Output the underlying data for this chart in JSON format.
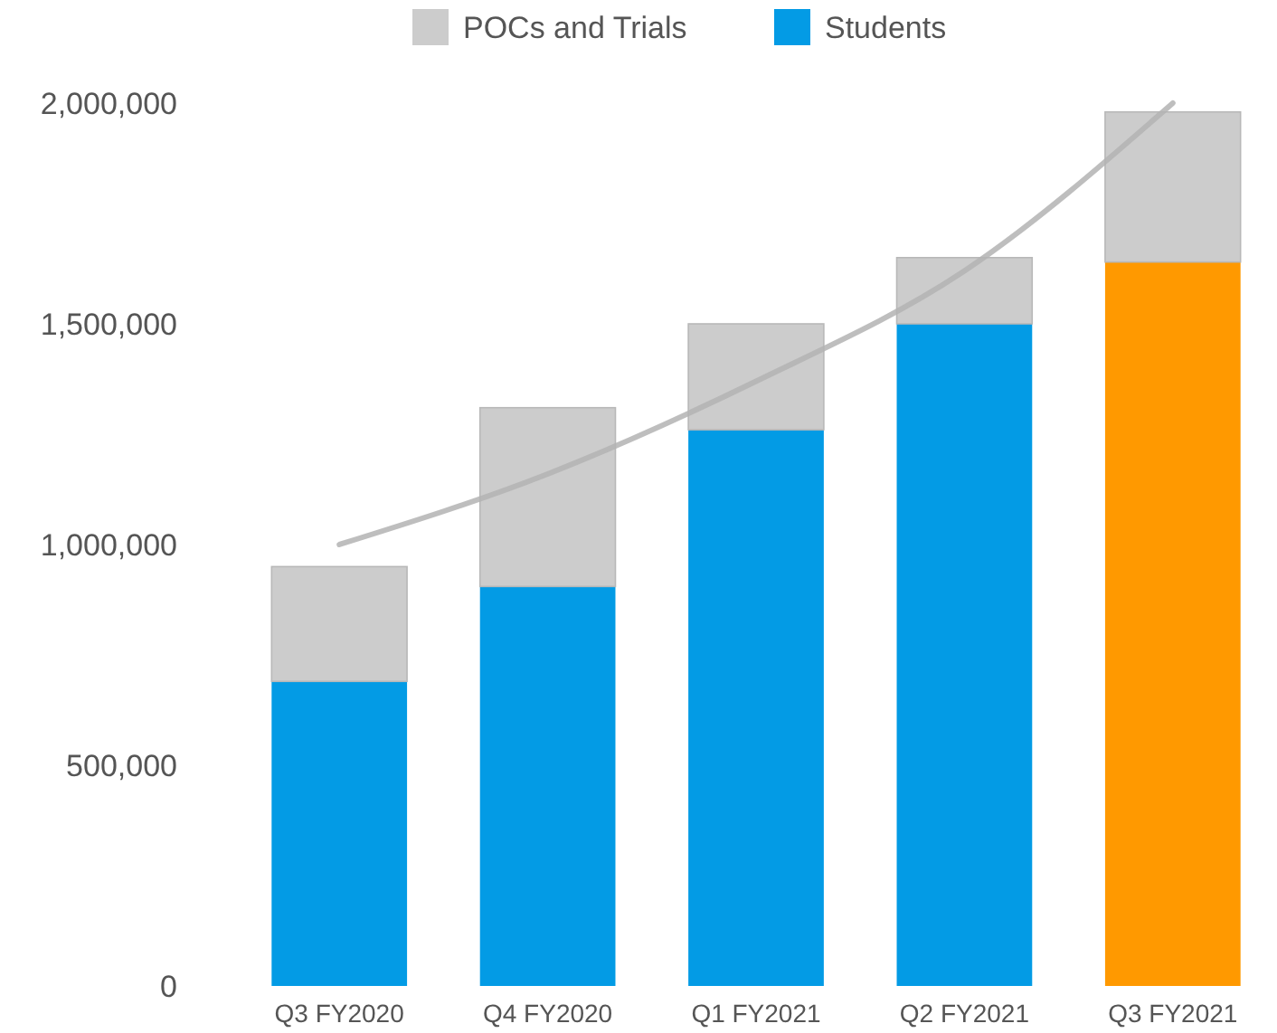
{
  "chart_data": {
    "type": "bar",
    "stacked": true,
    "categories": [
      "Q3 FY2020",
      "Q4 FY2020",
      "Q1 FY2021",
      "Q2 FY2021",
      "Q3 FY2021"
    ],
    "series": [
      {
        "name": "Students",
        "color": "#039be5",
        "colors": [
          "#039be5",
          "#039be5",
          "#039be5",
          "#039be5",
          "#ff9900"
        ],
        "values": [
          690000,
          905000,
          1260000,
          1500000,
          1640000
        ]
      },
      {
        "name": "POCs and Trials",
        "color": "#cccccc",
        "values": [
          260000,
          405000,
          240000,
          150000,
          340000
        ]
      },
      {
        "type": "line",
        "color": "#b3b3b3",
        "values": [
          1000000,
          1160000,
          1370000,
          1620000,
          2000000
        ]
      }
    ],
    "ylim": [
      0,
      2000000
    ],
    "yticks": [
      {
        "value": 0,
        "label": "0"
      },
      {
        "value": 500000,
        "label": "500,000"
      },
      {
        "value": 1000000,
        "label": "1,000,000"
      },
      {
        "value": 1500000,
        "label": "1,500,000"
      },
      {
        "value": 2000000,
        "label": "2,000,000"
      }
    ],
    "legend": "top",
    "grid": false
  }
}
